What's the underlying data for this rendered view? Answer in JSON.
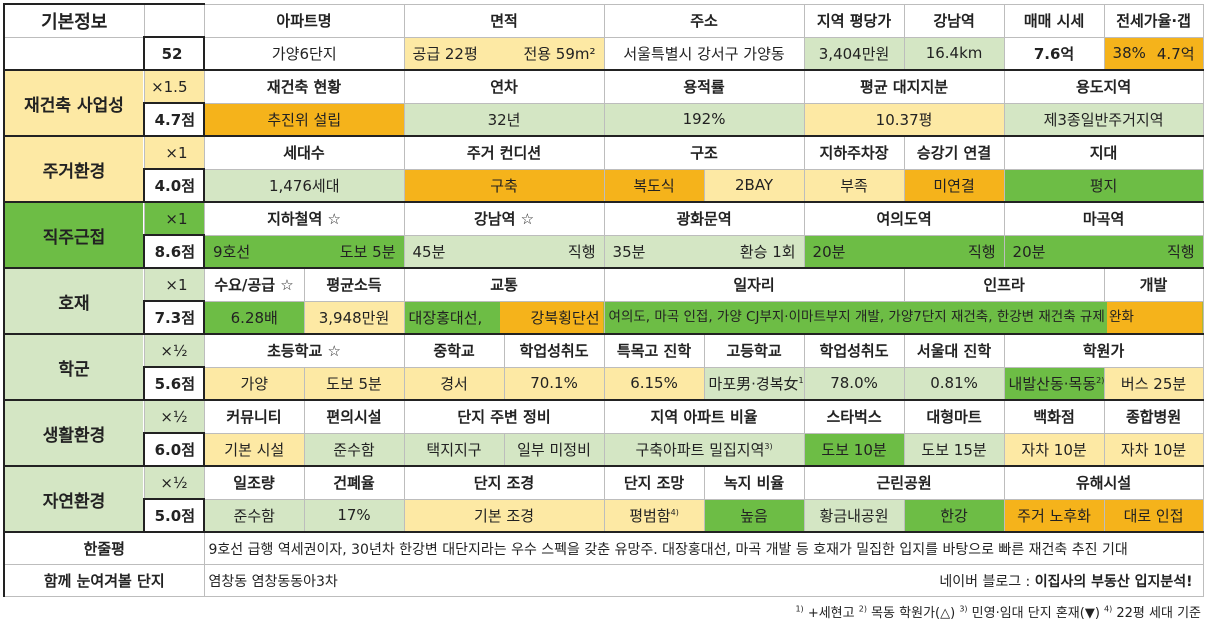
{
  "basic": {
    "label": "기본정보",
    "num": "52",
    "headers": [
      "아파트명",
      "면적",
      "주소",
      "지역 평당가",
      "강남역",
      "매매 시세",
      "전세가율·갭"
    ],
    "apt_name": "가양6단지",
    "area_supply": "공급 22평",
    "area_exclusive": "전용 59m²",
    "address": "서울특별시 강서구 가양동",
    "price_per_pyeong": "3,404만원",
    "gangnam": "16.4km",
    "sale_price": "7.6억",
    "jeonse_rate": "38%",
    "gap": "4.7억"
  },
  "sections": {
    "rebuild": {
      "label": "재건축 사업성",
      "mult": "×1.5",
      "score": "4.7점",
      "headers": [
        "재건축 현황",
        "연차",
        "용적률",
        "평균 대지지분",
        "용도지역"
      ],
      "values": [
        "추진위 설립",
        "32년",
        "192%",
        "10.37평",
        "제3종일반주거지역"
      ]
    },
    "living": {
      "label": "주거환경",
      "mult": "×1",
      "score": "4.0점",
      "headers": [
        "세대수",
        "주거 컨디션",
        "구조",
        "지하주차장",
        "승강기 연결",
        "지대"
      ],
      "values": [
        "1,476세대",
        "구축",
        "복도식",
        "2BAY",
        "부족",
        "미연결",
        "평지"
      ]
    },
    "commute": {
      "label": "직주근접",
      "mult": "×1",
      "score": "8.6점",
      "headers": [
        "지하철역 ☆",
        "강남역 ☆",
        "광화문역",
        "여의도역",
        "마곡역"
      ],
      "values": [
        "9호선",
        "도보 5분",
        "45분",
        "직행",
        "35분",
        "환승 1회",
        "20분",
        "직행",
        "20분",
        "직행"
      ]
    },
    "develop": {
      "label": "호재",
      "mult": "×1",
      "score": "7.3점",
      "headers": [
        "수요/공급 ☆",
        "평균소득",
        "교통",
        "일자리",
        "인프라",
        "개발"
      ],
      "values": [
        "6.28배",
        "3,948만원",
        "대장홍대선,",
        "강북횡단선",
        "여의도, 마곡 인접, 가양 CJ부지·이마트부지 개발, 가양7단지 재건축, 한강변 재건축 규제 완화"
      ]
    },
    "school": {
      "label": "학군",
      "mult": "×½",
      "score": "5.6점",
      "headers": [
        "초등학교 ☆",
        "중학교",
        "학업성취도",
        "특목고 진학",
        "고등학교",
        "학업성취도",
        "서울대 진학",
        "학원가"
      ],
      "values": [
        "가양",
        "도보 5분",
        "경서",
        "70.1%",
        "6.15%",
        "마포男·경복女",
        "78.0%",
        "0.81%",
        "내발산동·목동",
        "버스 25분"
      ]
    },
    "life": {
      "label": "생활환경",
      "mult": "×½",
      "score": "6.0점",
      "headers": [
        "커뮤니티",
        "편의시설",
        "단지 주변 정비",
        "지역 아파트 비율",
        "스타벅스",
        "대형마트",
        "백화점",
        "종합병원"
      ],
      "values": [
        "기본 시설",
        "준수함",
        "택지지구",
        "일부 미정비",
        "구축아파트 밀집지역",
        "도보 10분",
        "도보 15분",
        "자차 10분",
        "자차 10분"
      ]
    },
    "nature": {
      "label": "자연환경",
      "mult": "×½",
      "score": "5.0점",
      "headers": [
        "일조량",
        "건폐율",
        "단지 조경",
        "단지 조망",
        "녹지 비율",
        "근린공원",
        "유해시설"
      ],
      "values": [
        "준수함",
        "17%",
        "기본 조경",
        "평범함",
        "높음",
        "황금내공원",
        "한강",
        "주거 노후화",
        "대로 인접"
      ]
    }
  },
  "summary": {
    "label": "한줄평",
    "text": "9호선 급행 역세권이자, 30년차 한강변 대단지라는 우수 스펙을 갖춘 유망주. 대장홍대선, 마곡 개발 등 호재가 밀집한 입지를 바탕으로 빠른 재건축 추진 기대"
  },
  "related": {
    "label": "함께 눈여겨볼 단지",
    "text": "염창동 염창동동아3차",
    "blog_prefix": "네이버 블로그 : ",
    "blog_name": "이집사의 부동산 입지분석!"
  },
  "footnotes": {
    "n1": "+세현고",
    "n2": "목동 학원가(△)",
    "n3": "민영·임대 단지 혼재(▼)",
    "n4": "22평 세대 기준"
  },
  "colors": {
    "yellow": "#fde9a4",
    "orange": "#f5b31b",
    "light_green": "#d4e6c4",
    "green": "#6dbd45"
  }
}
